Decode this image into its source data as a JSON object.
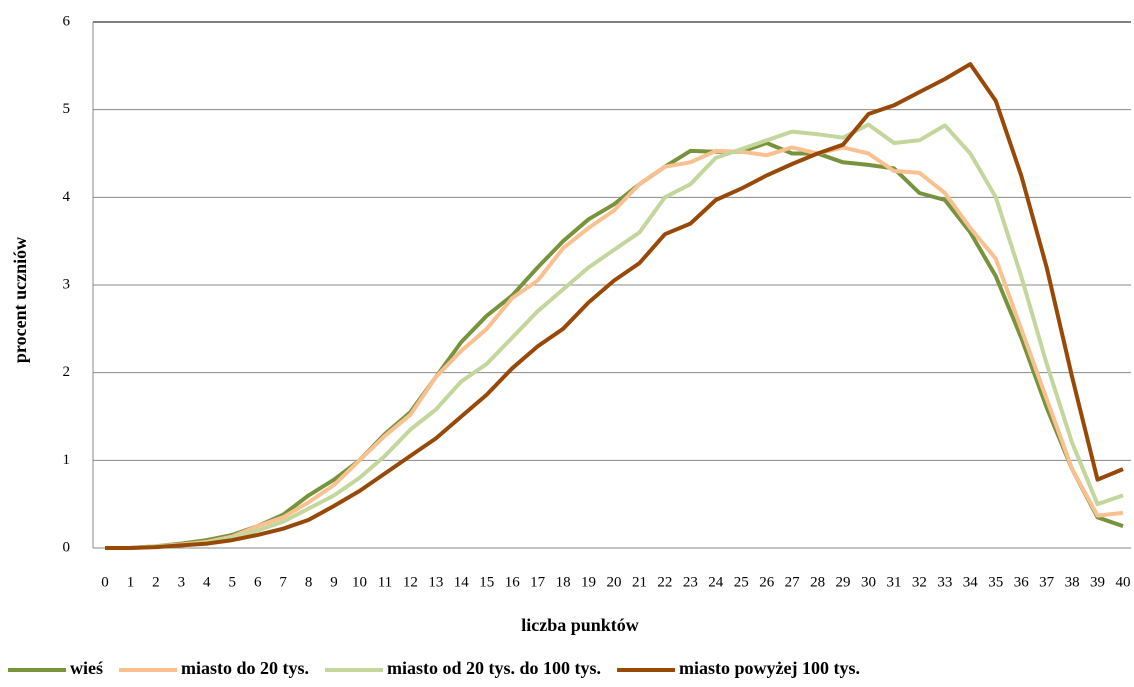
{
  "chart_data": {
    "type": "line",
    "x_label": "liczba punktów",
    "y_label": "procent uczniów",
    "categories": [
      "0",
      "1",
      "2",
      "3",
      "4",
      "5",
      "6",
      "7",
      "8",
      "9",
      "10",
      "11",
      "12",
      "13",
      "14",
      "15",
      "16",
      "17",
      "18",
      "19",
      "20",
      "21",
      "22",
      "23",
      "24",
      "25",
      "26",
      "27",
      "28",
      "29",
      "30",
      "31",
      "32",
      "33",
      "34",
      "35",
      "36",
      "37",
      "38",
      "39",
      "40"
    ],
    "ylim": [
      0,
      6
    ],
    "yticks": [
      0,
      1,
      2,
      3,
      4,
      5,
      6
    ],
    "grid": true,
    "legend": "bottom",
    "series": [
      {
        "name": "wieś",
        "color": "#77933c",
        "values": [
          0,
          0,
          0.02,
          0.05,
          0.09,
          0.15,
          0.25,
          0.38,
          0.6,
          0.78,
          1.0,
          1.3,
          1.55,
          1.95,
          2.35,
          2.65,
          2.88,
          3.2,
          3.5,
          3.75,
          3.92,
          4.15,
          4.35,
          4.53,
          4.52,
          4.52,
          4.62,
          4.5,
          4.5,
          4.4,
          4.37,
          4.33,
          4.05,
          3.97,
          3.6,
          3.1,
          2.4,
          1.6,
          0.9,
          0.35,
          0.25
        ]
      },
      {
        "name": "miasto do 20 tys.",
        "color": "#fac090",
        "values": [
          0,
          0,
          0.02,
          0.04,
          0.07,
          0.13,
          0.25,
          0.35,
          0.52,
          0.72,
          1.0,
          1.28,
          1.52,
          1.95,
          2.25,
          2.5,
          2.85,
          3.05,
          3.42,
          3.65,
          3.85,
          4.15,
          4.35,
          4.4,
          4.53,
          4.52,
          4.48,
          4.57,
          4.5,
          4.57,
          4.5,
          4.3,
          4.28,
          4.05,
          3.65,
          3.3,
          2.5,
          1.7,
          0.9,
          0.37,
          0.4
        ]
      },
      {
        "name": "miasto od 20 tys. do 100 tys.",
        "color": "#c3d69b",
        "values": [
          0,
          0,
          0.02,
          0.03,
          0.06,
          0.12,
          0.2,
          0.3,
          0.45,
          0.6,
          0.8,
          1.05,
          1.35,
          1.58,
          1.9,
          2.1,
          2.4,
          2.7,
          2.95,
          3.2,
          3.4,
          3.6,
          4.0,
          4.15,
          4.45,
          4.55,
          4.65,
          4.75,
          4.72,
          4.68,
          4.83,
          4.62,
          4.65,
          4.82,
          4.5,
          4.0,
          3.1,
          2.1,
          1.2,
          0.5,
          0.6
        ]
      },
      {
        "name": "miasto powyżej 100 tys.",
        "color": "#984807",
        "values": [
          0,
          0,
          0.01,
          0.03,
          0.05,
          0.09,
          0.15,
          0.22,
          0.32,
          0.48,
          0.65,
          0.85,
          1.05,
          1.25,
          1.5,
          1.75,
          2.05,
          2.3,
          2.5,
          2.8,
          3.05,
          3.25,
          3.58,
          3.7,
          3.97,
          4.1,
          4.25,
          4.38,
          4.5,
          4.6,
          4.95,
          5.05,
          5.2,
          5.35,
          5.52,
          5.1,
          4.25,
          3.2,
          1.95,
          0.78,
          0.9
        ]
      }
    ]
  }
}
